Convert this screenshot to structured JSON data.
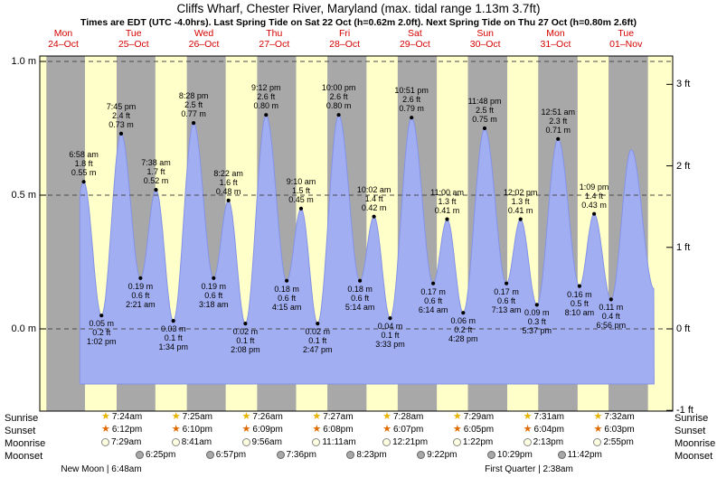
{
  "title": "Cliffs Wharf, Chester River, Maryland (max. tidal range 1.13m 3.7ft)",
  "subtitle": "Times are EDT (UTC -4.0hrs). Last Spring Tide on Sat 22 Oct (h=0.62m 2.0ft). Next Spring Tide on Thu 27 Oct (h=0.80m 2.6ft)",
  "days": [
    {
      "name": "Mon",
      "date": "24–Oct"
    },
    {
      "name": "Tue",
      "date": "25–Oct"
    },
    {
      "name": "Wed",
      "date": "26–Oct"
    },
    {
      "name": "Thu",
      "date": "27–Oct"
    },
    {
      "name": "Fri",
      "date": "28–Oct"
    },
    {
      "name": "Sat",
      "date": "29–Oct"
    },
    {
      "name": "Sun",
      "date": "30–Oct"
    },
    {
      "name": "Mon",
      "date": "31–Oct"
    },
    {
      "name": "Tue",
      "date": "01–Nov"
    }
  ],
  "y_axis": {
    "left_labels": [
      {
        "text": "1.0 m",
        "meters": 1.0
      },
      {
        "text": "0.5 m",
        "meters": 0.5
      },
      {
        "text": "0.0 m",
        "meters": 0.0
      }
    ],
    "right_labels": [
      {
        "text": "3 ft",
        "feet": 3
      },
      {
        "text": "2 ft",
        "feet": 2
      },
      {
        "text": "1 ft",
        "feet": 1
      },
      {
        "text": "0 ft",
        "feet": 0
      },
      {
        "text": "-1 ft",
        "feet": -1
      }
    ]
  },
  "chart_data": {
    "type": "area",
    "title": "Cliffs Wharf, Chester River, Maryland tide curve",
    "x_unit": "days from Mon 24 Oct 00:00 EDT",
    "y_unit": "meters",
    "ylim_m": [
      -0.31,
      1.02
    ],
    "tides": [
      {
        "kind": "high",
        "t": 0.2903,
        "h": 0.55,
        "lines": [
          "6:58 am",
          "1.8 ft",
          "0.55 m"
        ]
      },
      {
        "kind": "low",
        "t": 0.5431,
        "h": 0.05,
        "lines": [
          "0.05 m",
          "0.2 ft",
          "1:02 pm"
        ]
      },
      {
        "kind": "high",
        "t": 0.8229,
        "h": 0.73,
        "lines": [
          "7:45 pm",
          "2.4 ft",
          "0.73 m"
        ]
      },
      {
        "kind": "low",
        "t": 1.0979,
        "h": 0.19,
        "lines": [
          "0.19 m",
          "0.6 ft",
          "2:21 am"
        ]
      },
      {
        "kind": "high",
        "t": 1.3181,
        "h": 0.52,
        "lines": [
          "7:38 am",
          "1.7 ft",
          "0.52 m"
        ]
      },
      {
        "kind": "low",
        "t": 1.5653,
        "h": 0.03,
        "lines": [
          "0.03 m",
          "0.1 ft",
          "1:34 pm"
        ]
      },
      {
        "kind": "high",
        "t": 1.8528,
        "h": 0.77,
        "lines": [
          "8:28 pm",
          "2.5 ft",
          "0.77 m"
        ]
      },
      {
        "kind": "low",
        "t": 2.1375,
        "h": 0.19,
        "lines": [
          "0.19 m",
          "0.6 ft",
          "3:18 am"
        ]
      },
      {
        "kind": "high",
        "t": 2.3486,
        "h": 0.48,
        "lines": [
          "8:22 am",
          "1.6 ft",
          "0.48 m"
        ]
      },
      {
        "kind": "low",
        "t": 2.5889,
        "h": 0.02,
        "lines": [
          "0.02 m",
          "0.1 ft",
          "2:08 pm"
        ]
      },
      {
        "kind": "high",
        "t": 2.8833,
        "h": 0.8,
        "lines": [
          "9:12 pm",
          "2.6 ft",
          "0.80 m"
        ]
      },
      {
        "kind": "low",
        "t": 3.1771,
        "h": 0.18,
        "lines": [
          "0.18 m",
          "0.6 ft",
          "4:15 am"
        ]
      },
      {
        "kind": "high",
        "t": 3.3819,
        "h": 0.45,
        "lines": [
          "9:10 am",
          "1.5 ft",
          "0.45 m"
        ]
      },
      {
        "kind": "low",
        "t": 3.616,
        "h": 0.02,
        "lines": [
          "0.02 m",
          "0.1 ft",
          "2:47 pm"
        ]
      },
      {
        "kind": "high",
        "t": 3.9167,
        "h": 0.8,
        "lines": [
          "10:00 pm",
          "2.6 ft",
          "0.80 m"
        ]
      },
      {
        "kind": "low",
        "t": 4.2181,
        "h": 0.18,
        "lines": [
          "0.18 m",
          "0.6 ft",
          "5:14 am"
        ]
      },
      {
        "kind": "high",
        "t": 4.4181,
        "h": 0.42,
        "lines": [
          "10:02 am",
          "1.4 ft",
          "0.42 m"
        ]
      },
      {
        "kind": "low",
        "t": 4.6479,
        "h": 0.04,
        "lines": [
          "0.04 m",
          "0.1 ft",
          "3:33 pm"
        ]
      },
      {
        "kind": "high",
        "t": 4.9521,
        "h": 0.79,
        "lines": [
          "10:51 pm",
          "2.6 ft",
          "0.79 m"
        ]
      },
      {
        "kind": "low",
        "t": 5.2597,
        "h": 0.17,
        "lines": [
          "0.17 m",
          "0.6 ft",
          "6:14 am"
        ]
      },
      {
        "kind": "high",
        "t": 5.4583,
        "h": 0.41,
        "lines": [
          "11:00 am",
          "1.3 ft",
          "0.41 m"
        ]
      },
      {
        "kind": "low",
        "t": 5.6861,
        "h": 0.06,
        "lines": [
          "0.06 m",
          "0.2 ft",
          "4:28 pm"
        ]
      },
      {
        "kind": "high",
        "t": 5.9917,
        "h": 0.75,
        "lines": [
          "11:48 pm",
          "2.5 ft",
          "0.75 m"
        ]
      },
      {
        "kind": "low",
        "t": 6.3007,
        "h": 0.17,
        "lines": [
          "0.17 m",
          "0.6 ft",
          "7:13 am"
        ]
      },
      {
        "kind": "high",
        "t": 6.5014,
        "h": 0.41,
        "lines": [
          "12:02 pm",
          "1.3 ft",
          "0.41 m"
        ]
      },
      {
        "kind": "low",
        "t": 6.734,
        "h": 0.09,
        "lines": [
          "0.09 m",
          "0.3 ft",
          "5:37 pm"
        ]
      },
      {
        "kind": "high",
        "t": 7.0354,
        "h": 0.71,
        "lines": [
          "12:51 am",
          "2.3 ft",
          "0.71 m"
        ]
      },
      {
        "kind": "low",
        "t": 7.3403,
        "h": 0.16,
        "lines": [
          "0.16 m",
          "0.5 ft",
          "8:10 am"
        ]
      },
      {
        "kind": "high",
        "t": 7.5479,
        "h": 0.43,
        "lines": [
          "1:09 pm",
          "1.4 ft",
          "0.43 m"
        ]
      },
      {
        "kind": "low",
        "t": 7.7889,
        "h": 0.11,
        "lines": [
          "0.11 m",
          "0.4 ft",
          "6:56 pm"
        ]
      }
    ],
    "curve_edge_points": [
      [
        0.03,
        0.08
      ],
      [
        8.076,
        0.67
      ],
      [
        8.4,
        0.15
      ]
    ],
    "curve_domain": [
      0.235,
      8.4
    ],
    "colors": {
      "date_red": "#d40000",
      "plot_gray": "#a8a8a8",
      "daylight_yellow": "#ffffc9",
      "tide_blue": "#a2aef2",
      "tide_blue_edge": "#8493e8",
      "grid_dash": "#4a4a4a"
    }
  },
  "almanac": {
    "rows": [
      {
        "label": "Sunrise",
        "icon": "sunrise-star-icon",
        "times": [
          "7:24am",
          "7:25am",
          "7:26am",
          "7:27am",
          "7:28am",
          "7:29am",
          "7:31am",
          "7:32am"
        ]
      },
      {
        "label": "Sunset",
        "icon": "sunset-star-icon",
        "times": [
          "6:12pm",
          "6:10pm",
          "6:09pm",
          "6:08pm",
          "6:07pm",
          "6:05pm",
          "6:04pm",
          "6:03pm"
        ]
      },
      {
        "label": "Moonrise",
        "icon": "moonrise-circle-icon",
        "times": [
          "7:29am",
          "8:41am",
          "9:56am",
          "11:11am",
          "12:21pm",
          "1:22pm",
          "2:13pm",
          "2:55pm"
        ]
      },
      {
        "label": "Moonset",
        "icon": "moonset-circle-icon",
        "times": [
          "6:25pm",
          "6:57pm",
          "7:36pm",
          "8:23pm",
          "9:22pm",
          "10:29pm",
          "11:42pm"
        ]
      }
    ],
    "moon_phases": [
      {
        "label": "New Moon | 6:48am"
      },
      {
        "label": "First Quarter | 2:38am"
      }
    ]
  }
}
